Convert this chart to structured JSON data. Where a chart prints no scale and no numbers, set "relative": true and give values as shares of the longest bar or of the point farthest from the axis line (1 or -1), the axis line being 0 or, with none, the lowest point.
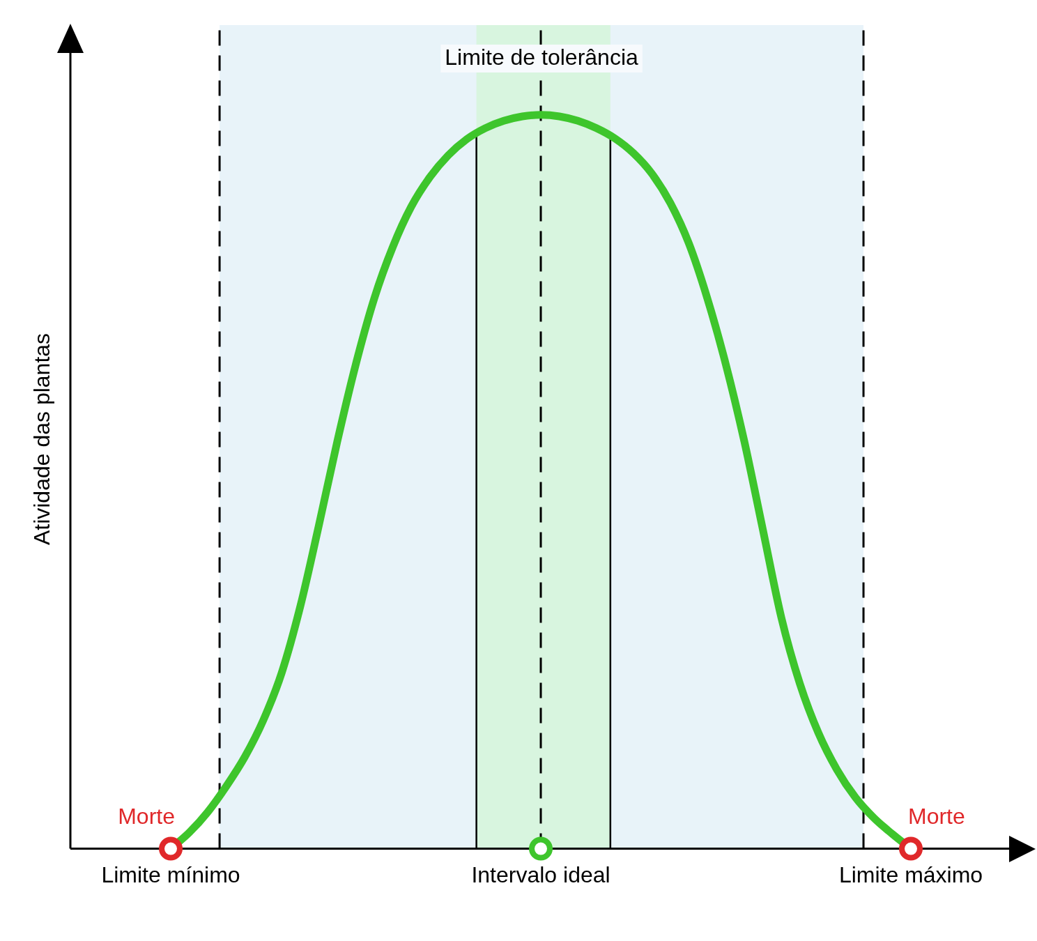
{
  "chart_data": {
    "type": "line",
    "ylabel": "Atividade das plantas",
    "relative": true,
    "legend": false,
    "categories": [
      "Limite mínimo",
      null,
      null,
      null,
      null,
      null,
      null,
      null,
      null,
      null,
      null,
      null,
      null,
      null,
      null,
      null,
      null,
      null,
      null,
      null,
      "Intervalo ideal",
      null,
      null,
      null,
      null,
      null,
      null,
      null,
      null,
      null,
      null,
      null,
      null,
      null,
      null,
      null,
      null,
      null,
      null,
      null,
      "Limite máximo"
    ],
    "series": [
      {
        "color": "#3ec52c",
        "values": [
          0,
          0.022,
          0.05,
          0.085,
          0.125,
          0.175,
          0.24,
          0.33,
          0.44,
          0.555,
          0.66,
          0.75,
          0.82,
          0.875,
          0.915,
          0.945,
          0.967,
          0.982,
          0.992,
          0.998,
          1,
          0.998,
          0.992,
          0.982,
          0.968,
          0.948,
          0.92,
          0.88,
          0.825,
          0.75,
          0.66,
          0.555,
          0.435,
          0.315,
          0.225,
          0.158,
          0.108,
          0.07,
          0.042,
          0.02,
          0
        ]
      },
      {
        "type": "scatter",
        "marker": "circle",
        "x": [
          "Limite mínimo",
          "Intervalo ideal",
          "Limite máximo"
        ],
        "values": [
          0,
          0,
          0
        ],
        "colors": [
          "#e0282a",
          "#3ec52c",
          "#e0282a"
        ]
      }
    ],
    "ref_lines": [
      {
        "axis": "x",
        "value": "Intervalo ideal",
        "line_style": "dashed",
        "color": "#000000"
      }
    ],
    "annotations": [
      "Limite de tolerância",
      {
        "text": "Morte",
        "x": "Limite mínimo",
        "y": 0
      },
      {
        "text": "Morte",
        "x": "Limite máximo",
        "y": 0
      }
    ]
  }
}
